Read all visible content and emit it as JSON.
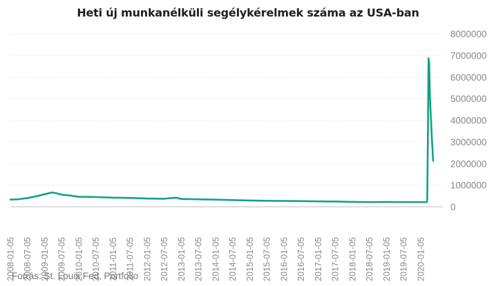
{
  "source": "Forrás: St. Louis Fed, Portfolio",
  "colors": {
    "series": "#12a27f",
    "grid": "#d9d9d9",
    "text_muted": "#888888"
  },
  "chart_data": {
    "type": "line",
    "title": "Heti új munkanélküli segélykérelmek száma az USA-ban",
    "xlabel": "",
    "ylabel": "",
    "y_axis_position": "right",
    "grid": true,
    "legend": "none",
    "ylim": [
      0,
      8000000
    ],
    "y_ticks": [
      0,
      1000000,
      2000000,
      3000000,
      4000000,
      5000000,
      6000000,
      7000000,
      8000000
    ],
    "y_tick_labels": [
      "0",
      "1000000",
      "2000000",
      "3000000",
      "4000000",
      "5000000",
      "6000000",
      "7000000",
      "8000000"
    ],
    "xlim": [
      "2008-01-05",
      "2020-05-16"
    ],
    "x_tick_labels": [
      "2008-01-05",
      "2008-07-05",
      "2009-01-05",
      "2009-07-05",
      "2010-01-05",
      "2010-07-05",
      "2011-01-05",
      "2011-07-05",
      "2012-01-05",
      "2012-07-05",
      "2013-01-05",
      "2013-07-05",
      "2014-01-05",
      "2014-07-05",
      "2015-01-05",
      "2015-07-05",
      "2016-01-05",
      "2016-07-05",
      "2017-01-05",
      "2017-07-05",
      "2018-01-05",
      "2018-07-05",
      "2019-01-05",
      "2019-07-05",
      "2020-01-05"
    ],
    "series": [
      {
        "x": [
          "2008-01-05",
          "2008-04-05",
          "2008-07-05",
          "2008-10-05",
          "2009-01-05",
          "2009-03-28",
          "2009-05-05",
          "2009-07-05",
          "2009-10-05",
          "2010-01-05",
          "2010-07-05",
          "2011-01-05",
          "2011-07-05",
          "2012-01-05",
          "2012-07-05",
          "2012-11-05",
          "2013-01-05",
          "2013-07-05",
          "2014-01-05",
          "2014-07-05",
          "2015-01-05",
          "2015-07-05",
          "2016-01-05",
          "2016-07-05",
          "2017-01-05",
          "2017-07-05",
          "2018-01-05",
          "2018-07-05",
          "2019-01-05",
          "2019-07-05",
          "2020-01-05",
          "2020-03-07",
          "2020-03-14",
          "2020-03-21",
          "2020-03-28",
          "2020-04-04",
          "2020-04-11",
          "2020-04-18",
          "2020-04-25",
          "2020-05-02",
          "2020-05-09",
          "2020-05-16"
        ],
        "values": [
          330000,
          350000,
          400000,
          480000,
          580000,
          660000,
          630000,
          560000,
          520000,
          460000,
          450000,
          420000,
          410000,
          380000,
          370000,
          420000,
          360000,
          345000,
          330000,
          310000,
          290000,
          275000,
          270000,
          260000,
          250000,
          240000,
          225000,
          215000,
          220000,
          215000,
          215000,
          211000,
          282000,
          3307000,
          6867000,
          6615000,
          5237000,
          4442000,
          3867000,
          3176000,
          2687000,
          2126000
        ]
      }
    ]
  }
}
